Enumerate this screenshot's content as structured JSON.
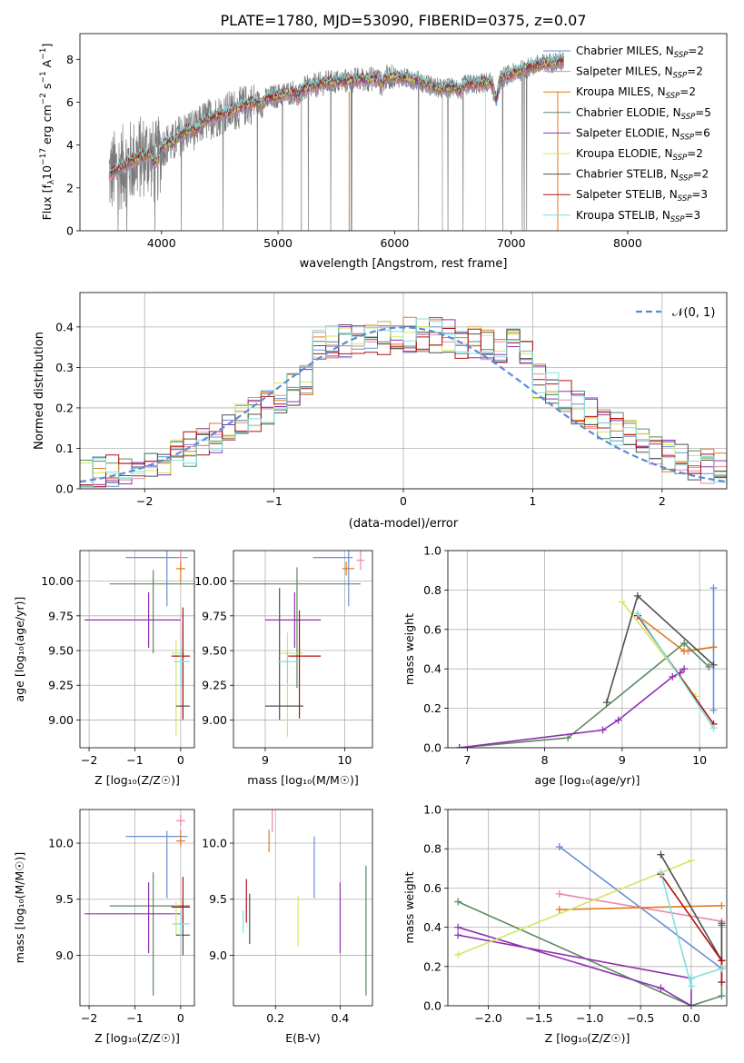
{
  "figure": {
    "title": "PLATE=1780, MJD=53090, FIBERID=0375, z=0.07"
  },
  "palette": [
    "#6a8fd8",
    "#e888a8",
    "#e07a20",
    "#5a8a60",
    "#9030b0",
    "#d0e860",
    "#505050",
    "#b01010",
    "#80e0e0"
  ],
  "chart_data": [
    {
      "id": "spectrum",
      "type": "line",
      "title": "PLATE=1780, MJD=53090, FIBERID=0375, z=0.07",
      "xlabel": "wavelength [Angstrom, rest frame]",
      "ylabel": "Flux [fλ10⁻¹⁷ erg cm⁻² s⁻¹ A⁻¹]",
      "xlim": [
        3300,
        8850
      ],
      "ylim": [
        0,
        9.2
      ],
      "xticks": [
        4000,
        5000,
        6000,
        7000,
        8000
      ],
      "yticks": [
        0,
        2,
        4,
        6,
        8
      ],
      "grid": false,
      "legend_position": "upper-right",
      "legend": [
        {
          "label": "Chabrier MILES, Nₛₛₚ=2",
          "text": "Chabrier MILES, N",
          "sub": "SSP",
          "tail": "=2",
          "color": "#6a8fd8"
        },
        {
          "text": "Salpeter MILES, N",
          "sub": "SSP",
          "tail": "=2",
          "color": "#e888a8"
        },
        {
          "text": "Kroupa MILES, N",
          "sub": "SSP",
          "tail": "=2",
          "color": "#e07a20"
        },
        {
          "text": "Chabrier ELODIE, N",
          "sub": "SSP",
          "tail": "=5",
          "color": "#5a8a60"
        },
        {
          "text": "Salpeter ELODIE, N",
          "sub": "SSP",
          "tail": "=6",
          "color": "#9030b0"
        },
        {
          "text": "Kroupa ELODIE, N",
          "sub": "SSP",
          "tail": "=2",
          "color": "#d0e860"
        },
        {
          "text": "Chabrier STELIB, N",
          "sub": "SSP",
          "tail": "=2",
          "color": "#505050"
        },
        {
          "text": "Salpeter STELIB, N",
          "sub": "SSP",
          "tail": "=3",
          "color": "#b01010"
        },
        {
          "text": "Kroupa STELIB, N",
          "sub": "SSP",
          "tail": "=3",
          "color": "#80e0e0"
        }
      ],
      "continuum": {
        "x": [
          3550,
          3700,
          3850,
          4000,
          4200,
          4400,
          4600,
          4800,
          5000,
          5200,
          5400,
          5600,
          5800,
          6000,
          6200,
          6400,
          6600,
          6800,
          7000,
          7200,
          7400
        ],
        "y": [
          2.6,
          3.1,
          3.5,
          3.9,
          4.6,
          5.2,
          5.6,
          6.0,
          6.3,
          6.6,
          6.9,
          7.0,
          7.1,
          7.2,
          7.0,
          6.6,
          6.8,
          6.9,
          7.3,
          7.7,
          7.9
        ]
      },
      "data_wavelength_range": [
        3550,
        7450
      ],
      "model_wavelength_range": [
        3550,
        7450
      ]
    },
    {
      "id": "residual-histogram",
      "type": "step-histogram",
      "xlabel": "(data-model)/error",
      "ylabel": "Normed distribution",
      "xlim": [
        -2.5,
        2.5
      ],
      "ylim": [
        0,
        0.485
      ],
      "xticks": [
        -2,
        -1,
        0,
        1,
        2
      ],
      "yticks": [
        0.0,
        0.1,
        0.2,
        0.3,
        0.4
      ],
      "grid": true,
      "bin_edges_range": [
        -2.5,
        2.5
      ],
      "bins": 50,
      "reference": {
        "name": "𝒩(0, 1)",
        "mean": 0,
        "sigma": 1,
        "color": "#5b8bd8",
        "style": "dashed"
      },
      "legend_position": "upper-right"
    },
    {
      "id": "age-vs-Z",
      "type": "errorbar",
      "xlabel": "Z [log₁₀(Z/Z☉)]",
      "ylabel": "age  [log₁₀(age/yr)]",
      "xlim": [
        -2.2,
        0.3
      ],
      "ylim": [
        8.8,
        10.22
      ],
      "xticks": [
        -2,
        -1,
        0
      ],
      "yticks": [
        9.0,
        9.25,
        9.5,
        9.75,
        10.0
      ],
      "grid": true,
      "points": [
        {
          "x": -0.3,
          "xerr": [
            0.9,
            0.45
          ],
          "y": 10.17,
          "yerr": [
            0.35,
            0.05
          ],
          "color": "#6a8fd8"
        },
        {
          "x": 0.0,
          "xerr": [
            0.05,
            0.1
          ],
          "y": 10.17,
          "yerr": [
            0.1,
            0.04
          ],
          "color": "#e888a8"
        },
        {
          "x": 0.0,
          "xerr": [
            0.1,
            0.1
          ],
          "y": 10.09,
          "yerr": [
            0.1,
            0.05
          ],
          "color": "#e07a20"
        },
        {
          "x": -0.6,
          "xerr": [
            0.95,
            0.9
          ],
          "y": 9.98,
          "yerr": [
            0.5,
            0.1
          ],
          "color": "#5a8a60"
        },
        {
          "x": -0.7,
          "xerr": [
            1.4,
            0.7
          ],
          "y": 9.72,
          "yerr": [
            0.2,
            0.2
          ],
          "color": "#9030b0"
        },
        {
          "x": -0.1,
          "xerr": [
            0.1,
            0.2
          ],
          "y": 9.48,
          "yerr": [
            0.6,
            0.1
          ],
          "color": "#d0e860"
        },
        {
          "x": 0.05,
          "xerr": [
            0.15,
            0.15
          ],
          "y": 9.1,
          "yerr": [
            0.1,
            0.6
          ],
          "color": "#505050"
        },
        {
          "x": 0.05,
          "xerr": [
            0.25,
            0.15
          ],
          "y": 9.46,
          "yerr": [
            0.45,
            0.35
          ],
          "color": "#b01010"
        },
        {
          "x": 0.0,
          "xerr": [
            0.15,
            0.2
          ],
          "y": 9.42,
          "yerr": [
            0.2,
            0.1
          ],
          "color": "#80e0e0"
        }
      ]
    },
    {
      "id": "age-vs-mass",
      "type": "errorbar",
      "xlabel": "mass [log₁₀(M/M☉)]",
      "ylabel": "",
      "xlim": [
        8.6,
        10.35
      ],
      "ylim": [
        8.8,
        10.22
      ],
      "xticks": [
        9,
        10
      ],
      "yticks": [
        9.0,
        9.25,
        9.5,
        9.75,
        10.0
      ],
      "grid": true,
      "points": [
        {
          "x": 10.05,
          "xerr": [
            0.45,
            0.05
          ],
          "y": 10.17,
          "yerr": [
            0.35,
            0.05
          ],
          "color": "#6a8fd8"
        },
        {
          "x": 10.2,
          "xerr": [
            0.05,
            0.05
          ],
          "y": 10.15,
          "yerr": [
            0.07,
            0.07
          ],
          "color": "#e888a8"
        },
        {
          "x": 10.02,
          "xerr": [
            0.05,
            0.1
          ],
          "y": 10.09,
          "yerr": [
            0.05,
            0.05
          ],
          "color": "#e07a20"
        },
        {
          "x": 9.4,
          "xerr": [
            0.8,
            0.8
          ],
          "y": 9.98,
          "yerr": [
            0.75,
            0.12
          ],
          "color": "#5a8a60"
        },
        {
          "x": 9.37,
          "xerr": [
            0.37,
            0.33
          ],
          "y": 9.72,
          "yerr": [
            0.2,
            0.2
          ],
          "color": "#9030b0"
        },
        {
          "x": 9.28,
          "xerr": [
            0.1,
            0.2
          ],
          "y": 9.48,
          "yerr": [
            0.6,
            0.15
          ],
          "color": "#d0e860"
        },
        {
          "x": 9.18,
          "xerr": [
            0.18,
            0.3
          ],
          "y": 9.1,
          "yerr": [
            0.1,
            0.85
          ],
          "color": "#505050"
        },
        {
          "x": 9.43,
          "xerr": [
            0.14,
            0.27
          ],
          "y": 9.46,
          "yerr": [
            0.45,
            0.33
          ],
          "color": "#b01010"
        },
        {
          "x": 9.28,
          "xerr": [
            0.12,
            0.12
          ],
          "y": 9.42,
          "yerr": [
            0.16,
            0.08
          ],
          "color": "#80e0e0"
        }
      ]
    },
    {
      "id": "weight-vs-age",
      "type": "line",
      "xlabel": "age  [log₁₀(age/yr)]",
      "ylabel": "mass weight",
      "xlim": [
        6.75,
        10.35
      ],
      "ylim": [
        0,
        1
      ],
      "xticks": [
        7,
        8,
        9,
        10
      ],
      "yticks": [
        0.0,
        0.2,
        0.4,
        0.6,
        0.8,
        1.0
      ],
      "grid": true,
      "series": [
        {
          "x": [
            10.18,
            10.18
          ],
          "y": [
            0.19,
            0.81
          ],
          "color": "#6a8fd8"
        },
        {
          "x": [
            9.85,
            10.18
          ],
          "y": [
            0.49,
            0.51
          ],
          "color": "#e888a8"
        },
        {
          "x": [
            9.2,
            9.8,
            10.18
          ],
          "y": [
            0.67,
            0.49,
            0.51
          ],
          "color": "#e07a20"
        },
        {
          "x": [
            6.9,
            8.3,
            9.8,
            10.12
          ],
          "y": [
            0.0,
            0.05,
            0.53,
            0.41
          ],
          "color": "#5a8a60"
        },
        {
          "x": [
            6.9,
            8.75,
            8.95,
            9.65,
            9.75,
            9.8
          ],
          "y": [
            0.0,
            0.09,
            0.14,
            0.36,
            0.38,
            0.4
          ],
          "color": "#9030b0"
        },
        {
          "x": [
            9.0,
            9.95
          ],
          "y": [
            0.74,
            0.26
          ],
          "color": "#d0e860"
        },
        {
          "x": [
            8.8,
            9.2,
            10.18
          ],
          "y": [
            0.23,
            0.77,
            0.42
          ],
          "color": "#505050"
        },
        {
          "x": [
            9.2,
            10.18
          ],
          "y": [
            0.67,
            0.12
          ],
          "color": "#b01010"
        },
        {
          "x": [
            9.2,
            10.18
          ],
          "y": [
            0.68,
            0.1
          ],
          "color": "#80e0e0"
        }
      ]
    },
    {
      "id": "mass-vs-Z",
      "type": "errorbar",
      "xlabel": "Z [log₁₀(Z/Z☉)]",
      "ylabel": "mass [log₁₀(M/M☉)]",
      "xlim": [
        -2.2,
        0.3
      ],
      "ylim": [
        8.55,
        10.3
      ],
      "xticks": [
        -2,
        -1,
        0
      ],
      "yticks": [
        9.0,
        9.5,
        10.0
      ],
      "grid": true,
      "points": [
        {
          "x": -0.3,
          "xerr": [
            0.9,
            0.45
          ],
          "y": 10.06,
          "yerr": [
            0.55,
            0.05
          ],
          "color": "#6a8fd8"
        },
        {
          "x": 0.0,
          "xerr": [
            0.1,
            0.1
          ],
          "y": 10.2,
          "yerr": [
            0.05,
            0.05
          ],
          "color": "#e888a8"
        },
        {
          "x": 0.0,
          "xerr": [
            0.1,
            0.1
          ],
          "y": 10.02,
          "yerr": [
            0.05,
            0.1
          ],
          "color": "#e07a20"
        },
        {
          "x": -0.6,
          "xerr": [
            0.95,
            0.8
          ],
          "y": 9.44,
          "yerr": [
            0.8,
            0.3
          ],
          "color": "#5a8a60"
        },
        {
          "x": -0.7,
          "xerr": [
            1.4,
            0.7
          ],
          "y": 9.37,
          "yerr": [
            0.35,
            0.28
          ],
          "color": "#9030b0"
        },
        {
          "x": -0.1,
          "xerr": [
            0.1,
            0.2
          ],
          "y": 9.28,
          "yerr": [
            0.1,
            0.2
          ],
          "color": "#d0e860"
        },
        {
          "x": 0.05,
          "xerr": [
            0.15,
            0.15
          ],
          "y": 9.18,
          "yerr": [
            0.18,
            0.3
          ],
          "color": "#505050"
        },
        {
          "x": 0.05,
          "xerr": [
            0.25,
            0.15
          ],
          "y": 9.43,
          "yerr": [
            0.14,
            0.27
          ],
          "color": "#b01010"
        },
        {
          "x": 0.0,
          "xerr": [
            0.15,
            0.2
          ],
          "y": 9.28,
          "yerr": [
            0.12,
            0.12
          ],
          "color": "#80e0e0"
        }
      ]
    },
    {
      "id": "mass-vs-EBV",
      "type": "errorbar",
      "xlabel": "E(B-V)",
      "ylabel": "",
      "xlim": [
        0.07,
        0.5
      ],
      "ylim": [
        8.55,
        10.3
      ],
      "xticks": [
        0.2,
        0.4
      ],
      "yticks": [
        9.0,
        9.5,
        10.0
      ],
      "grid": true,
      "points": [
        {
          "x": 0.32,
          "xerr": [
            0,
            0
          ],
          "y": 10.06,
          "yerr": [
            0.55,
            0.0
          ],
          "color": "#6a8fd8"
        },
        {
          "x": 0.19,
          "xerr": [
            0,
            0
          ],
          "y": 10.2,
          "yerr": [
            0.1,
            0.1
          ],
          "color": "#e888a8"
        },
        {
          "x": 0.18,
          "xerr": [
            0,
            0
          ],
          "y": 10.02,
          "yerr": [
            0.1,
            0.1
          ],
          "color": "#e07a20"
        },
        {
          "x": 0.48,
          "xerr": [
            0,
            0
          ],
          "y": 9.44,
          "yerr": [
            0.8,
            0.36
          ],
          "color": "#5a8a60"
        },
        {
          "x": 0.4,
          "xerr": [
            0,
            0
          ],
          "y": 9.37,
          "yerr": [
            0.35,
            0.28
          ],
          "color": "#9030b0"
        },
        {
          "x": 0.27,
          "xerr": [
            0,
            0
          ],
          "y": 9.28,
          "yerr": [
            0.2,
            0.25
          ],
          "color": "#d0e860"
        },
        {
          "x": 0.12,
          "xerr": [
            0,
            0
          ],
          "y": 9.35,
          "yerr": [
            0.25,
            0.2
          ],
          "color": "#505050"
        },
        {
          "x": 0.11,
          "xerr": [
            0,
            0
          ],
          "y": 9.43,
          "yerr": [
            0.14,
            0.25
          ],
          "color": "#b01010"
        },
        {
          "x": 0.1,
          "xerr": [
            0,
            0
          ],
          "y": 9.3,
          "yerr": [
            0.1,
            0.1
          ],
          "color": "#80e0e0"
        }
      ]
    },
    {
      "id": "weight-vs-Z",
      "type": "line",
      "xlabel": "Z [log₁₀(Z/Z☉)]",
      "ylabel": "mass weight",
      "xlim": [
        -2.4,
        0.35
      ],
      "ylim": [
        0,
        1
      ],
      "xticks": [
        -2.0,
        -1.5,
        -1.0,
        -0.5,
        0.0
      ],
      "xtick_labels": [
        "−2.0",
        "−1.5",
        "−1.0",
        "−0.5",
        "0.0"
      ],
      "yticks": [
        0.0,
        0.2,
        0.4,
        0.6,
        0.8,
        1.0
      ],
      "grid": true,
      "series": [
        {
          "x": [
            -1.3,
            0.3
          ],
          "y": [
            0.81,
            0.19
          ],
          "color": "#6a8fd8"
        },
        {
          "x": [
            -1.3,
            0.3
          ],
          "y": [
            0.57,
            0.43
          ],
          "color": "#e888a8"
        },
        {
          "x": [
            -1.3,
            0.3
          ],
          "y": [
            0.49,
            0.51
          ],
          "color": "#e07a20"
        },
        {
          "x": [
            -2.3,
            0.0,
            0.3,
            0.3
          ],
          "y": [
            0.53,
            0.0,
            0.05,
            0.41
          ],
          "color": "#5a8a60"
        },
        {
          "x": [
            -2.3,
            -0.3,
            0.0,
            0.0,
            -2.3
          ],
          "y": [
            0.4,
            0.09,
            0.0,
            0.14,
            0.36
          ],
          "color": "#9030b0"
        },
        {
          "x": [
            -2.3,
            0.0
          ],
          "y": [
            0.26,
            0.74
          ],
          "color": "#d0e860"
        },
        {
          "x": [
            -0.3,
            0.3,
            0.3
          ],
          "y": [
            0.77,
            0.23,
            0.42
          ],
          "color": "#505050"
        },
        {
          "x": [
            -0.3,
            0.3,
            0.3
          ],
          "y": [
            0.67,
            0.23,
            0.12
          ],
          "color": "#b01010"
        },
        {
          "x": [
            -0.3,
            0.0,
            0.0,
            0.3
          ],
          "y": [
            0.68,
            0.1,
            0.14,
            0.19
          ],
          "color": "#80e0e0"
        }
      ]
    }
  ]
}
